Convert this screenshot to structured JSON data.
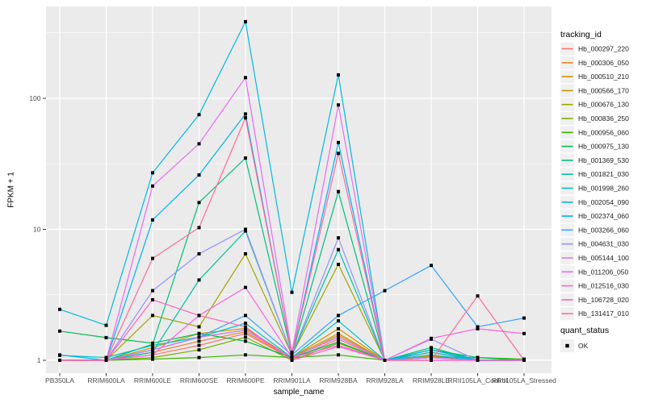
{
  "figure": {
    "background": "#FFFFFF",
    "panel_bg": "#EBEBEB",
    "grid_color": "#FFFFFF",
    "tick_mark_color": "#333333",
    "tick_label_color": "#4D4D4D",
    "point_color": "#000000",
    "legend_key_bg": "#F0F0F0"
  },
  "chart_data": {
    "type": "line",
    "title": "",
    "xlabel": "sample_name",
    "ylabel": "FPKM + 1",
    "y_scale": "log10",
    "grid": true,
    "legend_position": "right",
    "y_ticks": [
      1,
      10,
      100
    ],
    "y_tick_labels": [
      "1",
      "10",
      "100"
    ],
    "y_minor_ticks": [
      3.1623,
      31.623,
      316.23
    ],
    "ylim": [
      0.9,
      500
    ],
    "categories": [
      "PB350LA",
      "RRIM600LA",
      "RRIM600LE",
      "RRIM600SE",
      "RRIM600PE",
      "RRIM901LA",
      "RRIM928BA",
      "RRIM928LA",
      "RRIM928LE",
      "RRII105LA_Control",
      "RRII105LA_Stressed"
    ],
    "series": [
      {
        "name": "Hb_000297_220",
        "color": "#F8766D",
        "values": [
          1,
          1,
          1.1,
          1.3,
          1.6,
          1.02,
          1.45,
          1,
          1.05,
          1,
          1
        ]
      },
      {
        "name": "Hb_000306_050",
        "color": "#EA8331",
        "values": [
          1,
          1,
          1.15,
          1.4,
          1.65,
          1.03,
          1.55,
          1,
          1.06,
          1,
          1
        ]
      },
      {
        "name": "Hb_000510_210",
        "color": "#D89000",
        "values": [
          1,
          1,
          1.2,
          1.5,
          1.7,
          1.05,
          1.74,
          1,
          1.08,
          1,
          1
        ]
      },
      {
        "name": "Hb_000566_170",
        "color": "#C09B00",
        "values": [
          1,
          1,
          1.25,
          1.6,
          1.75,
          1.05,
          1.6,
          1,
          1.1,
          1,
          1
        ]
      },
      {
        "name": "Hb_000676_130",
        "color": "#A3A500",
        "values": [
          1,
          1,
          2.2,
          1.8,
          6.5,
          1.1,
          5.4,
          1,
          1.15,
          1,
          1
        ]
      },
      {
        "name": "Hb_000836_250",
        "color": "#7CAE00",
        "values": [
          1,
          1,
          1.05,
          1.2,
          1.5,
          1,
          1.35,
          1,
          1.05,
          1,
          1
        ]
      },
      {
        "name": "Hb_000956_060",
        "color": "#39B600",
        "values": [
          1,
          1,
          1.02,
          1.05,
          1.1,
          1.05,
          1.1,
          1,
          1.05,
          1.05,
          1.02
        ]
      },
      {
        "name": "Hb_000975_130",
        "color": "#00BB4E",
        "values": [
          1.67,
          1.49,
          1.35,
          1.6,
          1.4,
          1.05,
          1.38,
          1,
          1.2,
          1.05,
          1
        ]
      },
      {
        "name": "Hb_001369_530",
        "color": "#00BF7D",
        "values": [
          1,
          1,
          1.33,
          16,
          35,
          1.1,
          19.4,
          1,
          1.25,
          1,
          1
        ]
      },
      {
        "name": "Hb_001821_030",
        "color": "#00C1A3",
        "values": [
          1,
          1,
          1.15,
          4.1,
          9.7,
          1.1,
          7,
          1,
          1.2,
          1,
          1
        ]
      },
      {
        "name": "Hb_001998_260",
        "color": "#00BFC4",
        "values": [
          1.09,
          1.05,
          1.3,
          1.5,
          1.92,
          1.05,
          2,
          1,
          1.15,
          1,
          1
        ]
      },
      {
        "name": "Hb_002054_090",
        "color": "#00BAE0",
        "values": [
          2.45,
          1.85,
          27,
          75,
          385,
          3.3,
          151,
          1,
          1.1,
          1,
          1
        ]
      },
      {
        "name": "Hb_002374_060",
        "color": "#00B0F6",
        "values": [
          1.1,
          1,
          11.8,
          26,
          76,
          1.1,
          46,
          1,
          1.2,
          1,
          1
        ]
      },
      {
        "name": "Hb_003266_060",
        "color": "#35A2FF",
        "values": [
          1,
          1,
          1.2,
          1.5,
          2.2,
          1.1,
          2.2,
          3.4,
          5.3,
          1.8,
          2.1
        ]
      },
      {
        "name": "Hb_004631_030",
        "color": "#9590FF",
        "values": [
          1,
          1,
          3.4,
          6.5,
          10,
          1.1,
          8.6,
          1,
          1.45,
          1,
          1
        ]
      },
      {
        "name": "Hb_005144_100",
        "color": "#C77CFF",
        "values": [
          1,
          1,
          1.2,
          1.5,
          1.7,
          1.05,
          1.5,
          1,
          1.05,
          1,
          1
        ]
      },
      {
        "name": "Hb_011206_050",
        "color": "#E76BF3",
        "values": [
          1,
          1,
          21.4,
          45,
          144,
          1.15,
          89,
          1,
          1,
          1,
          1
        ]
      },
      {
        "name": "Hb_012516_030",
        "color": "#FA62DB",
        "values": [
          1,
          1,
          1.1,
          2.2,
          3.6,
          1.05,
          1.3,
          1,
          1.47,
          1.74,
          1.6
        ]
      },
      {
        "name": "Hb_106728_020",
        "color": "#FF62BC",
        "values": [
          1,
          1,
          2.9,
          2.2,
          1.8,
          1,
          1.27,
          1,
          1,
          1,
          1
        ]
      },
      {
        "name": "Hb_131417_010",
        "color": "#FF6A98",
        "values": [
          1,
          1,
          6,
          10.3,
          71,
          1.1,
          38,
          1,
          1,
          3.1,
          1
        ]
      }
    ],
    "legend": {
      "series_title": "tracking_id",
      "status_title": "quant_status",
      "status_label": "OK"
    }
  }
}
